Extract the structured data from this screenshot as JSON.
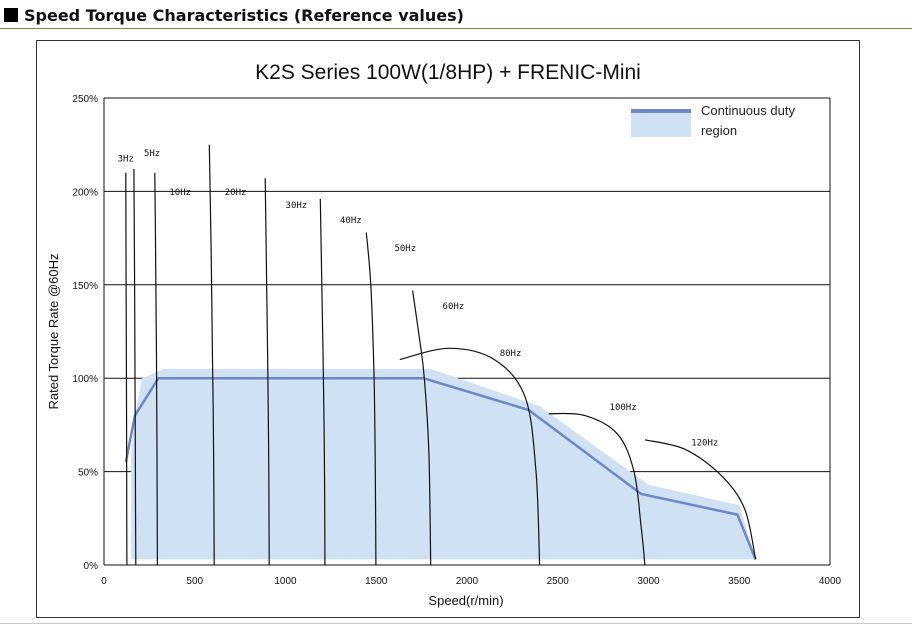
{
  "section_heading": "Speed Torque Characteristics (Reference values)",
  "chart_data": {
    "type": "line",
    "title": "K2S Series 100W(1/8HP) + FRENIC-Mini",
    "xlabel": "Speed(r/min)",
    "ylabel": "Rated Torque Rate @60Hz",
    "xlim": [
      0,
      4000
    ],
    "ylim": [
      0,
      250
    ],
    "xticks": [
      0,
      500,
      1000,
      1500,
      2000,
      2500,
      3000,
      3500,
      4000
    ],
    "yticks": [
      0,
      50,
      100,
      150,
      200,
      250
    ],
    "ytick_labels": [
      "0%",
      "50%",
      "100%",
      "150%",
      "200%",
      "250%"
    ],
    "grid": "horizontal",
    "legend": {
      "position": "top-right",
      "label_line1": "Continuous duty",
      "label_line2": "region",
      "color": "#6d87c9",
      "fill": "#cfe1f2"
    },
    "continuous_region": [
      [
        150,
        3
      ],
      [
        150,
        60
      ],
      [
        170,
        80
      ],
      [
        210,
        100
      ],
      [
        330,
        105
      ],
      [
        1800,
        105
      ],
      [
        2400,
        85
      ],
      [
        3000,
        43
      ],
      [
        3500,
        32
      ],
      [
        3590,
        3
      ]
    ],
    "continuous_line": [
      [
        120,
        55
      ],
      [
        170,
        80
      ],
      [
        300,
        100
      ],
      [
        1760,
        100
      ],
      [
        2340,
        83
      ],
      [
        2960,
        38
      ],
      [
        3490,
        27
      ],
      [
        3590,
        3
      ]
    ],
    "hz_curves": [
      {
        "label": "3Hz",
        "label_at": [
          120,
          216
        ],
        "points": [
          [
            120,
            210
          ],
          [
            122,
            150
          ],
          [
            124,
            90
          ],
          [
            125,
            40
          ],
          [
            126,
            0
          ]
        ]
      },
      {
        "label": "5Hz",
        "label_at": [
          265,
          219
        ],
        "points": [
          [
            165,
            212
          ],
          [
            168,
            160
          ],
          [
            171,
            100
          ],
          [
            173,
            50
          ],
          [
            175,
            0
          ]
        ]
      },
      {
        "label": "10Hz",
        "label_at": [
          420,
          198
        ],
        "points": [
          [
            280,
            210
          ],
          [
            285,
            160
          ],
          [
            289,
            110
          ],
          [
            292,
            60
          ],
          [
            294,
            0
          ]
        ]
      },
      {
        "label": "20Hz",
        "label_at": [
          725,
          198
        ],
        "points": [
          [
            580,
            225
          ],
          [
            590,
            170
          ],
          [
            598,
            110
          ],
          [
            604,
            60
          ],
          [
            607,
            0
          ]
        ]
      },
      {
        "label": "30Hz",
        "label_at": [
          1060,
          191
        ],
        "points": [
          [
            888,
            207
          ],
          [
            895,
            160
          ],
          [
            903,
            100
          ],
          [
            908,
            50
          ],
          [
            910,
            0
          ]
        ]
      },
      {
        "label": "40Hz",
        "label_at": [
          1360,
          183
        ],
        "points": [
          [
            1192,
            196
          ],
          [
            1200,
            150
          ],
          [
            1209,
            100
          ],
          [
            1215,
            50
          ],
          [
            1217,
            0
          ]
        ]
      },
      {
        "label": "50Hz",
        "label_at": [
          1660,
          168
        ],
        "points": [
          [
            1445,
            178
          ],
          [
            1470,
            150
          ],
          [
            1488,
            100
          ],
          [
            1495,
            50
          ],
          [
            1498,
            0
          ]
        ]
      },
      {
        "label": "60Hz",
        "label_at": [
          1925,
          137
        ],
        "points": [
          [
            1700,
            147
          ],
          [
            1740,
            120
          ],
          [
            1765,
            100
          ],
          [
            1790,
            60
          ],
          [
            1800,
            0
          ]
        ]
      },
      {
        "label": "80Hz",
        "label_at": [
          2240,
          112
        ],
        "points": [
          [
            1630,
            110
          ],
          [
            1900,
            116
          ],
          [
            2150,
            110
          ],
          [
            2320,
            90
          ],
          [
            2380,
            50
          ],
          [
            2400,
            0
          ]
        ]
      },
      {
        "label": "100Hz",
        "label_at": [
          2860,
          83
        ],
        "points": [
          [
            2450,
            81
          ],
          [
            2650,
            80
          ],
          [
            2830,
            70
          ],
          [
            2920,
            50
          ],
          [
            2960,
            20
          ],
          [
            2980,
            0
          ]
        ]
      },
      {
        "label": "120Hz",
        "label_at": [
          3310,
          64
        ],
        "points": [
          [
            2980,
            67
          ],
          [
            3200,
            62
          ],
          [
            3400,
            48
          ],
          [
            3530,
            30
          ],
          [
            3590,
            3
          ]
        ]
      }
    ]
  }
}
